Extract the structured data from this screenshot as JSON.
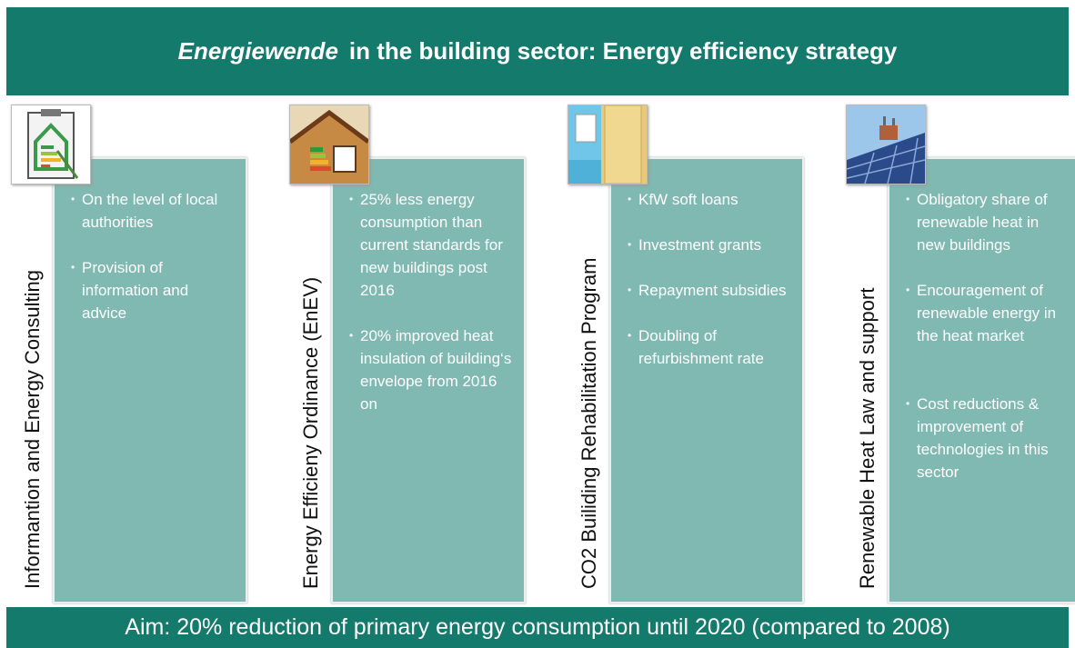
{
  "header": {
    "title_emphasis": "Energiewende",
    "title_rest": "in the building sector: Energy efficiency strategy"
  },
  "columns": [
    {
      "label": "Informantion and Energy Consulting",
      "bullets": [
        "On the level of local authorities",
        "Provision of information and advice"
      ]
    },
    {
      "label": "Energy Efficieny Ordinance (EnEV)",
      "bullets": [
        "25% less energy consumption than current standards for new buildings post 2016",
        "20% improved heat insulation of building‘s envelope  from 2016 on"
      ]
    },
    {
      "label": "CO2 Builiding Rehabilitation Program",
      "bullets": [
        "KfW soft loans",
        "Investment grants",
        "Repayment subsidies",
        "Doubling of refurbishment rate"
      ]
    },
    {
      "label": "Renewable  Heat Law and support",
      "bullets": [
        "Obligatory share of renewable heat in new buildings",
        "Encouragement of renewable energy in the heat market",
        "Cost reductions & improvement of technologies in this sector"
      ]
    }
  ],
  "footer": "Aim: 20% reduction of primary energy consumption until 2020 (compared to 2008)"
}
